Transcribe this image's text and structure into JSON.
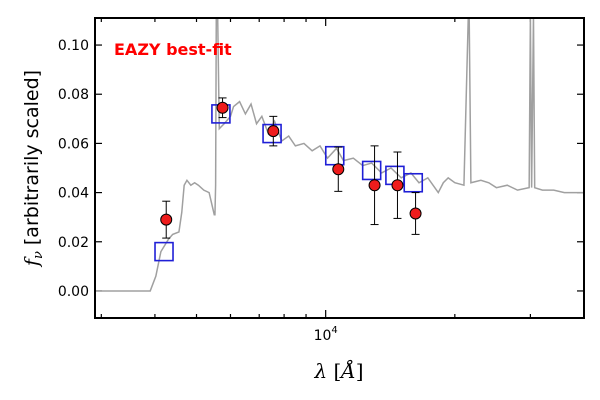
{
  "chart_data": {
    "type": "scatter",
    "title": "",
    "annotation": "EAZY best-fit",
    "xlabel": "λ [Å]",
    "xlabel_parts": {
      "symbol": "λ",
      "open": " [",
      "unit": "Å",
      "close": "]"
    },
    "ylabel": "fν [arbitrarily scaled]",
    "ylabel_parts": {
      "symbol": "f",
      "subscript": "ν",
      "text": " [arbitrarily scaled]"
    },
    "x_scale": "log",
    "xlim": [
      2900,
      40000
    ],
    "ylim": [
      -0.011,
      0.111
    ],
    "x_tick_labels": [
      {
        "base": "10",
        "exp": "4",
        "value": 10000
      }
    ],
    "y_ticks": [
      {
        "value": 0.0,
        "label": "0.00"
      },
      {
        "value": 0.02,
        "label": "0.02"
      },
      {
        "value": 0.04,
        "label": "0.04"
      },
      {
        "value": 0.06,
        "label": "0.06"
      },
      {
        "value": 0.08,
        "label": "0.08"
      },
      {
        "value": 0.1,
        "label": "0.10"
      }
    ],
    "grid": false,
    "colors": {
      "model": "#a0a0a0",
      "observed": "#ee1c1c",
      "model_photometry": "#1f1fd6",
      "annotation": "#ff0000"
    },
    "series": [
      {
        "kind": "line",
        "points": [
          [
            2900,
            0.0
          ],
          [
            3900,
            0.0
          ],
          [
            4020,
            0.006
          ],
          [
            4130,
            0.016
          ],
          [
            4300,
            0.021
          ],
          [
            4400,
            0.023
          ],
          [
            4550,
            0.024
          ],
          [
            4620,
            0.032
          ],
          [
            4680,
            0.043
          ],
          [
            4750,
            0.045
          ],
          [
            4850,
            0.043
          ],
          [
            4950,
            0.044
          ],
          [
            5050,
            0.043
          ],
          [
            5200,
            0.041
          ],
          [
            5350,
            0.04
          ],
          [
            5500,
            0.031
          ],
          [
            5520,
            0.031
          ],
          [
            5540,
            0.043
          ],
          [
            5560,
            0.113
          ],
          [
            5600,
            0.113
          ],
          [
            5650,
            0.066
          ],
          [
            5800,
            0.068
          ],
          [
            6000,
            0.071
          ],
          [
            6100,
            0.075
          ],
          [
            6300,
            0.077
          ],
          [
            6500,
            0.072
          ],
          [
            6700,
            0.076
          ],
          [
            6900,
            0.068
          ],
          [
            7100,
            0.071
          ],
          [
            7350,
            0.064
          ],
          [
            7600,
            0.069
          ],
          [
            7900,
            0.061
          ],
          [
            8200,
            0.063
          ],
          [
            8500,
            0.059
          ],
          [
            8900,
            0.06
          ],
          [
            9300,
            0.057
          ],
          [
            9700,
            0.059
          ],
          [
            10100,
            0.054
          ],
          [
            10600,
            0.058
          ],
          [
            11000,
            0.053
          ],
          [
            11600,
            0.054
          ],
          [
            12200,
            0.051
          ],
          [
            12800,
            0.052
          ],
          [
            13500,
            0.048
          ],
          [
            14200,
            0.05
          ],
          [
            15000,
            0.046
          ],
          [
            15800,
            0.048
          ],
          [
            16500,
            0.044
          ],
          [
            17300,
            0.046
          ],
          [
            18300,
            0.04
          ],
          [
            18800,
            0.044
          ],
          [
            19300,
            0.046
          ],
          [
            20000,
            0.044
          ],
          [
            21000,
            0.043
          ],
          [
            21500,
            0.112
          ],
          [
            21600,
            0.112
          ],
          [
            21800,
            0.044
          ],
          [
            23000,
            0.045
          ],
          [
            24000,
            0.044
          ],
          [
            25000,
            0.042
          ],
          [
            26500,
            0.043
          ],
          [
            28000,
            0.041
          ],
          [
            29800,
            0.042
          ],
          [
            30000,
            0.112
          ],
          [
            30200,
            0.042
          ],
          [
            30500,
            0.112
          ],
          [
            30700,
            0.042
          ],
          [
            32000,
            0.041
          ],
          [
            34000,
            0.041
          ],
          [
            36000,
            0.04
          ],
          [
            38000,
            0.04
          ],
          [
            40000,
            0.04
          ]
        ]
      },
      {
        "kind": "model-photometry",
        "x": [
          4200,
          5700,
          7500,
          10500,
          12800,
          14500,
          16000
        ],
        "y": [
          0.016,
          0.072,
          0.064,
          0.055,
          0.049,
          0.047,
          0.044
        ]
      },
      {
        "kind": "observed",
        "x": [
          4250,
          5750,
          7550,
          10700,
          13000,
          14700,
          16200
        ],
        "y": [
          0.029,
          0.0745,
          0.065,
          0.0495,
          0.043,
          0.043,
          0.0315
        ],
        "yerr": [
          0.0075,
          0.004,
          0.006,
          0.009,
          0.016,
          0.0135,
          0.0085
        ]
      }
    ]
  }
}
